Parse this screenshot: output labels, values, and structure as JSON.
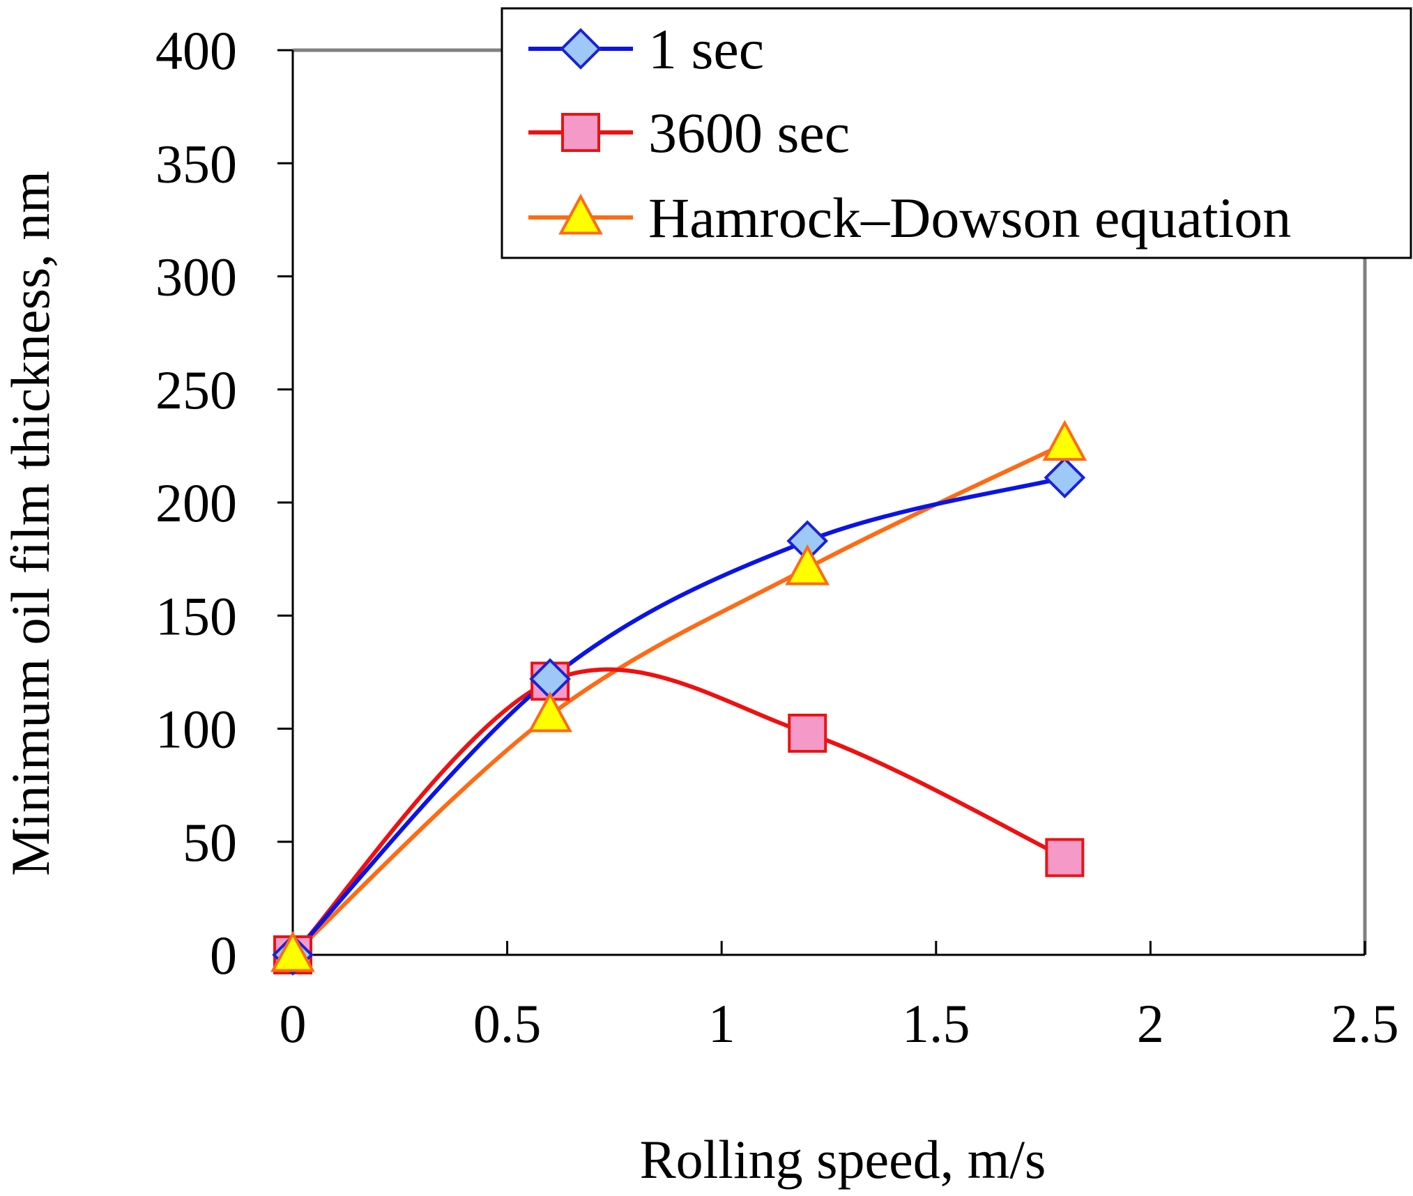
{
  "chart_data": {
    "type": "line",
    "title": "",
    "xlabel": "Rolling speed, m/s",
    "ylabel": "Minimum oil film thickness, nm",
    "xlim": [
      0,
      2.5
    ],
    "ylim": [
      0,
      400
    ],
    "xticks": [
      0,
      0.5,
      1,
      1.5,
      2,
      2.5
    ],
    "xtick_labels": [
      "0",
      "0.5",
      "1",
      "1.5",
      "2",
      "2.5"
    ],
    "yticks": [
      0,
      50,
      100,
      150,
      200,
      250,
      300,
      350,
      400
    ],
    "ytick_labels": [
      "0",
      "50",
      "100",
      "150",
      "200",
      "250",
      "300",
      "350",
      "400"
    ],
    "grid": false,
    "legend_position": "top-right",
    "series": [
      {
        "name": "1 sec",
        "marker": "diamond",
        "line_color": "#0a14e6",
        "marker_fill": "#9ec8f5",
        "marker_stroke": "#1a22d8",
        "x": [
          0,
          0.6,
          1.2,
          1.8
        ],
        "y": [
          0,
          122,
          183,
          211
        ]
      },
      {
        "name": "3600 sec",
        "marker": "square",
        "line_color": "#ee1111",
        "marker_fill": "#f59ac8",
        "marker_stroke": "#e81414",
        "x": [
          0,
          0.6,
          1.2,
          1.8
        ],
        "y": [
          0,
          121,
          98,
          43
        ]
      },
      {
        "name": "Hamrock–Dowson equation",
        "marker": "triangle",
        "line_color": "#ff6a14",
        "marker_fill": "#ffff00",
        "marker_stroke": "#ff6a14",
        "x": [
          0,
          0.6,
          1.2,
          1.8
        ],
        "y": [
          0,
          106,
          171,
          226
        ]
      }
    ]
  }
}
